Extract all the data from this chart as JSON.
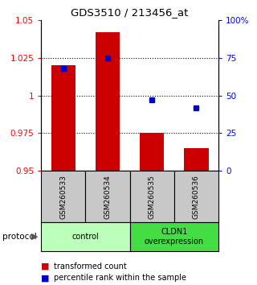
{
  "title": "GDS3510 / 213456_at",
  "samples": [
    "GSM260533",
    "GSM260534",
    "GSM260535",
    "GSM260536"
  ],
  "bar_values": [
    1.02,
    1.042,
    0.975,
    0.965
  ],
  "percentile_values": [
    68,
    75,
    47,
    42
  ],
  "ylim_left": [
    0.95,
    1.05
  ],
  "ylim_right": [
    0,
    100
  ],
  "yticks_left": [
    0.95,
    0.975,
    1.0,
    1.025,
    1.05
  ],
  "ytick_labels_left": [
    "0.95",
    "0.975",
    "1",
    "1.025",
    "1.05"
  ],
  "yticks_right": [
    0,
    25,
    50,
    75,
    100
  ],
  "ytick_labels_right": [
    "0",
    "25",
    "50",
    "75",
    "100%"
  ],
  "dotted_lines": [
    0.975,
    1.0,
    1.025
  ],
  "bar_color": "#cc0000",
  "dot_color": "#0000cc",
  "bar_width": 0.55,
  "groups": [
    {
      "label": "control",
      "samples": [
        0,
        1
      ],
      "color": "#bbffbb"
    },
    {
      "label": "CLDN1\noverexpression",
      "samples": [
        2,
        3
      ],
      "color": "#44dd44"
    }
  ],
  "sample_box_color": "#c8c8c8",
  "protocol_label": "protocol",
  "legend_red_label": "transformed count",
  "legend_blue_label": "percentile rank within the sample",
  "base_value": 0.95
}
